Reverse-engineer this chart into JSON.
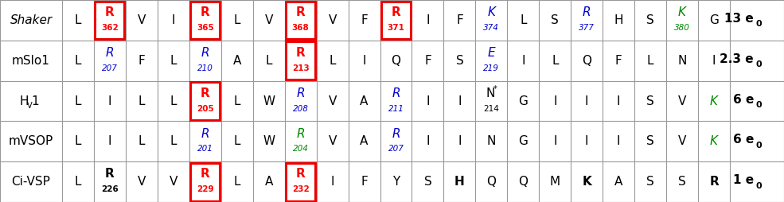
{
  "rows": [
    {
      "name": "Shaker",
      "name_style": "italic",
      "cells": [
        {
          "text": "L",
          "style": "normal",
          "color": "#000000",
          "boxed": false,
          "has_num": false,
          "num": ""
        },
        {
          "text": "R",
          "style": "bold",
          "color": "#ff0000",
          "boxed": true,
          "has_num": true,
          "num": "362"
        },
        {
          "text": "V",
          "style": "normal",
          "color": "#000000",
          "boxed": false,
          "has_num": false,
          "num": ""
        },
        {
          "text": "I",
          "style": "normal",
          "color": "#000000",
          "boxed": false,
          "has_num": false,
          "num": ""
        },
        {
          "text": "R",
          "style": "bold",
          "color": "#ff0000",
          "boxed": true,
          "has_num": true,
          "num": "365"
        },
        {
          "text": "L",
          "style": "normal",
          "color": "#000000",
          "boxed": false,
          "has_num": false,
          "num": ""
        },
        {
          "text": "V",
          "style": "normal",
          "color": "#000000",
          "boxed": false,
          "has_num": false,
          "num": ""
        },
        {
          "text": "R",
          "style": "bold",
          "color": "#ff0000",
          "boxed": true,
          "has_num": true,
          "num": "368"
        },
        {
          "text": "V",
          "style": "normal",
          "color": "#000000",
          "boxed": false,
          "has_num": false,
          "num": ""
        },
        {
          "text": "F",
          "style": "normal",
          "color": "#000000",
          "boxed": false,
          "has_num": false,
          "num": ""
        },
        {
          "text": "R",
          "style": "bold",
          "color": "#ff0000",
          "boxed": true,
          "has_num": true,
          "num": "371"
        },
        {
          "text": "I",
          "style": "normal",
          "color": "#000000",
          "boxed": false,
          "has_num": false,
          "num": ""
        },
        {
          "text": "F",
          "style": "normal",
          "color": "#000000",
          "boxed": false,
          "has_num": false,
          "num": ""
        },
        {
          "text": "K",
          "style": "italic",
          "color": "#0000cc",
          "boxed": false,
          "has_num": true,
          "num": "374"
        },
        {
          "text": "L",
          "style": "normal",
          "color": "#000000",
          "boxed": false,
          "has_num": false,
          "num": ""
        },
        {
          "text": "S",
          "style": "normal",
          "color": "#000000",
          "boxed": false,
          "has_num": false,
          "num": ""
        },
        {
          "text": "R",
          "style": "italic",
          "color": "#0000cc",
          "boxed": false,
          "has_num": true,
          "num": "377"
        },
        {
          "text": "H",
          "style": "normal",
          "color": "#000000",
          "boxed": false,
          "has_num": false,
          "num": ""
        },
        {
          "text": "S",
          "style": "normal",
          "color": "#000000",
          "boxed": false,
          "has_num": false,
          "num": ""
        },
        {
          "text": "K",
          "style": "italic",
          "color": "#008800",
          "boxed": false,
          "has_num": true,
          "num": "380"
        },
        {
          "text": "G",
          "style": "normal",
          "color": "#000000",
          "boxed": false,
          "has_num": false,
          "num": ""
        }
      ],
      "charge_num": "13",
      "charge_e": "e",
      "charge_sub": "0"
    },
    {
      "name": "mSlo1",
      "name_style": "normal",
      "cells": [
        {
          "text": "L",
          "style": "normal",
          "color": "#000000",
          "boxed": false,
          "has_num": false,
          "num": ""
        },
        {
          "text": "R",
          "style": "italic",
          "color": "#0000cc",
          "boxed": false,
          "has_num": true,
          "num": "207"
        },
        {
          "text": "F",
          "style": "normal",
          "color": "#000000",
          "boxed": false,
          "has_num": false,
          "num": ""
        },
        {
          "text": "L",
          "style": "normal",
          "color": "#000000",
          "boxed": false,
          "has_num": false,
          "num": ""
        },
        {
          "text": "R",
          "style": "italic",
          "color": "#0000cc",
          "boxed": false,
          "has_num": true,
          "num": "210"
        },
        {
          "text": "A",
          "style": "normal",
          "color": "#000000",
          "boxed": false,
          "has_num": false,
          "num": ""
        },
        {
          "text": "L",
          "style": "normal",
          "color": "#000000",
          "boxed": false,
          "has_num": false,
          "num": ""
        },
        {
          "text": "R",
          "style": "bold",
          "color": "#ff0000",
          "boxed": true,
          "has_num": true,
          "num": "213"
        },
        {
          "text": "L",
          "style": "normal",
          "color": "#000000",
          "boxed": false,
          "has_num": false,
          "num": ""
        },
        {
          "text": "I",
          "style": "normal",
          "color": "#000000",
          "boxed": false,
          "has_num": false,
          "num": ""
        },
        {
          "text": "Q",
          "style": "normal",
          "color": "#000000",
          "boxed": false,
          "has_num": false,
          "num": ""
        },
        {
          "text": "F",
          "style": "normal",
          "color": "#000000",
          "boxed": false,
          "has_num": false,
          "num": ""
        },
        {
          "text": "S",
          "style": "normal",
          "color": "#000000",
          "boxed": false,
          "has_num": false,
          "num": ""
        },
        {
          "text": "E",
          "style": "italic",
          "color": "#0000cc",
          "boxed": false,
          "has_num": true,
          "num": "219"
        },
        {
          "text": "I",
          "style": "normal",
          "color": "#000000",
          "boxed": false,
          "has_num": false,
          "num": ""
        },
        {
          "text": "L",
          "style": "normal",
          "color": "#000000",
          "boxed": false,
          "has_num": false,
          "num": ""
        },
        {
          "text": "Q",
          "style": "normal",
          "color": "#000000",
          "boxed": false,
          "has_num": false,
          "num": ""
        },
        {
          "text": "F",
          "style": "normal",
          "color": "#000000",
          "boxed": false,
          "has_num": false,
          "num": ""
        },
        {
          "text": "L",
          "style": "normal",
          "color": "#000000",
          "boxed": false,
          "has_num": false,
          "num": ""
        },
        {
          "text": "N",
          "style": "normal",
          "color": "#000000",
          "boxed": false,
          "has_num": false,
          "num": ""
        },
        {
          "text": "I",
          "style": "normal",
          "color": "#000000",
          "boxed": false,
          "has_num": false,
          "num": ""
        }
      ],
      "charge_num": "2.3",
      "charge_e": "e",
      "charge_sub": "0"
    },
    {
      "name": "HV1",
      "name_style": "hv1",
      "cells": [
        {
          "text": "L",
          "style": "normal",
          "color": "#000000",
          "boxed": false,
          "has_num": false,
          "num": ""
        },
        {
          "text": "I",
          "style": "normal",
          "color": "#000000",
          "boxed": false,
          "has_num": false,
          "num": ""
        },
        {
          "text": "L",
          "style": "normal",
          "color": "#000000",
          "boxed": false,
          "has_num": false,
          "num": ""
        },
        {
          "text": "L",
          "style": "normal",
          "color": "#000000",
          "boxed": false,
          "has_num": false,
          "num": ""
        },
        {
          "text": "R",
          "style": "bold",
          "color": "#ff0000",
          "boxed": true,
          "has_num": true,
          "num": "205"
        },
        {
          "text": "L",
          "style": "normal",
          "color": "#000000",
          "boxed": false,
          "has_num": false,
          "num": ""
        },
        {
          "text": "W",
          "style": "normal",
          "color": "#000000",
          "boxed": false,
          "has_num": false,
          "num": ""
        },
        {
          "text": "R",
          "style": "italic",
          "color": "#0000cc",
          "boxed": false,
          "has_num": true,
          "num": "208"
        },
        {
          "text": "V",
          "style": "normal",
          "color": "#000000",
          "boxed": false,
          "has_num": false,
          "num": ""
        },
        {
          "text": "A",
          "style": "normal",
          "color": "#000000",
          "boxed": false,
          "has_num": false,
          "num": ""
        },
        {
          "text": "R",
          "style": "italic",
          "color": "#0000cc",
          "boxed": false,
          "has_num": true,
          "num": "211"
        },
        {
          "text": "I",
          "style": "normal",
          "color": "#000000",
          "boxed": false,
          "has_num": false,
          "num": ""
        },
        {
          "text": "I",
          "style": "normal",
          "color": "#000000",
          "boxed": false,
          "has_num": false,
          "num": ""
        },
        {
          "text": "N*",
          "style": "normal",
          "color": "#000000",
          "boxed": false,
          "has_num": true,
          "num": "214"
        },
        {
          "text": "G",
          "style": "normal",
          "color": "#000000",
          "boxed": false,
          "has_num": false,
          "num": ""
        },
        {
          "text": "I",
          "style": "normal",
          "color": "#000000",
          "boxed": false,
          "has_num": false,
          "num": ""
        },
        {
          "text": "I",
          "style": "normal",
          "color": "#000000",
          "boxed": false,
          "has_num": false,
          "num": ""
        },
        {
          "text": "I",
          "style": "normal",
          "color": "#000000",
          "boxed": false,
          "has_num": false,
          "num": ""
        },
        {
          "text": "S",
          "style": "normal",
          "color": "#000000",
          "boxed": false,
          "has_num": false,
          "num": ""
        },
        {
          "text": "V",
          "style": "normal",
          "color": "#000000",
          "boxed": false,
          "has_num": false,
          "num": ""
        },
        {
          "text": "K",
          "style": "italic",
          "color": "#008800",
          "boxed": false,
          "has_num": false,
          "num": ""
        }
      ],
      "charge_num": "6",
      "charge_e": "e",
      "charge_sub": "0"
    },
    {
      "name": "mVSOP",
      "name_style": "normal",
      "cells": [
        {
          "text": "L",
          "style": "normal",
          "color": "#000000",
          "boxed": false,
          "has_num": false,
          "num": ""
        },
        {
          "text": "I",
          "style": "normal",
          "color": "#000000",
          "boxed": false,
          "has_num": false,
          "num": ""
        },
        {
          "text": "L",
          "style": "normal",
          "color": "#000000",
          "boxed": false,
          "has_num": false,
          "num": ""
        },
        {
          "text": "L",
          "style": "normal",
          "color": "#000000",
          "boxed": false,
          "has_num": false,
          "num": ""
        },
        {
          "text": "R",
          "style": "italic",
          "color": "#0000cc",
          "boxed": false,
          "has_num": true,
          "num": "201"
        },
        {
          "text": "L",
          "style": "normal",
          "color": "#000000",
          "boxed": false,
          "has_num": false,
          "num": ""
        },
        {
          "text": "W",
          "style": "normal",
          "color": "#000000",
          "boxed": false,
          "has_num": false,
          "num": ""
        },
        {
          "text": "R",
          "style": "italic",
          "color": "#008800",
          "boxed": false,
          "has_num": true,
          "num": "204"
        },
        {
          "text": "V",
          "style": "normal",
          "color": "#000000",
          "boxed": false,
          "has_num": false,
          "num": ""
        },
        {
          "text": "A",
          "style": "normal",
          "color": "#000000",
          "boxed": false,
          "has_num": false,
          "num": ""
        },
        {
          "text": "R",
          "style": "italic",
          "color": "#0000cc",
          "boxed": false,
          "has_num": true,
          "num": "207"
        },
        {
          "text": "I",
          "style": "normal",
          "color": "#000000",
          "boxed": false,
          "has_num": false,
          "num": ""
        },
        {
          "text": "I",
          "style": "normal",
          "color": "#000000",
          "boxed": false,
          "has_num": false,
          "num": ""
        },
        {
          "text": "N",
          "style": "normal",
          "color": "#000000",
          "boxed": false,
          "has_num": false,
          "num": ""
        },
        {
          "text": "G",
          "style": "normal",
          "color": "#000000",
          "boxed": false,
          "has_num": false,
          "num": ""
        },
        {
          "text": "I",
          "style": "normal",
          "color": "#000000",
          "boxed": false,
          "has_num": false,
          "num": ""
        },
        {
          "text": "I",
          "style": "normal",
          "color": "#000000",
          "boxed": false,
          "has_num": false,
          "num": ""
        },
        {
          "text": "I",
          "style": "normal",
          "color": "#000000",
          "boxed": false,
          "has_num": false,
          "num": ""
        },
        {
          "text": "S",
          "style": "normal",
          "color": "#000000",
          "boxed": false,
          "has_num": false,
          "num": ""
        },
        {
          "text": "V",
          "style": "normal",
          "color": "#000000",
          "boxed": false,
          "has_num": false,
          "num": ""
        },
        {
          "text": "K",
          "style": "italic",
          "color": "#008800",
          "boxed": false,
          "has_num": false,
          "num": ""
        }
      ],
      "charge_num": "6",
      "charge_e": "e",
      "charge_sub": "0"
    },
    {
      "name": "Ci-VSP",
      "name_style": "normal",
      "cells": [
        {
          "text": "L",
          "style": "normal",
          "color": "#000000",
          "boxed": false,
          "has_num": false,
          "num": ""
        },
        {
          "text": "R",
          "style": "bold",
          "color": "#000000",
          "boxed": false,
          "has_num": true,
          "num": "226"
        },
        {
          "text": "V",
          "style": "normal",
          "color": "#000000",
          "boxed": false,
          "has_num": false,
          "num": ""
        },
        {
          "text": "V",
          "style": "normal",
          "color": "#000000",
          "boxed": false,
          "has_num": false,
          "num": ""
        },
        {
          "text": "R",
          "style": "bold",
          "color": "#ff0000",
          "boxed": true,
          "has_num": true,
          "num": "229"
        },
        {
          "text": "L",
          "style": "normal",
          "color": "#000000",
          "boxed": false,
          "has_num": false,
          "num": ""
        },
        {
          "text": "A",
          "style": "normal",
          "color": "#000000",
          "boxed": false,
          "has_num": false,
          "num": ""
        },
        {
          "text": "R",
          "style": "bold",
          "color": "#ff0000",
          "boxed": true,
          "has_num": true,
          "num": "232"
        },
        {
          "text": "I",
          "style": "normal",
          "color": "#000000",
          "boxed": false,
          "has_num": false,
          "num": ""
        },
        {
          "text": "F",
          "style": "normal",
          "color": "#000000",
          "boxed": false,
          "has_num": false,
          "num": ""
        },
        {
          "text": "Y",
          "style": "normal",
          "color": "#000000",
          "boxed": false,
          "has_num": false,
          "num": ""
        },
        {
          "text": "S",
          "style": "normal",
          "color": "#000000",
          "boxed": false,
          "has_num": false,
          "num": ""
        },
        {
          "text": "H",
          "style": "bold",
          "color": "#000000",
          "boxed": false,
          "has_num": false,
          "num": ""
        },
        {
          "text": "Q",
          "style": "normal",
          "color": "#000000",
          "boxed": false,
          "has_num": false,
          "num": ""
        },
        {
          "text": "Q",
          "style": "normal",
          "color": "#000000",
          "boxed": false,
          "has_num": false,
          "num": ""
        },
        {
          "text": "M",
          "style": "normal",
          "color": "#000000",
          "boxed": false,
          "has_num": false,
          "num": ""
        },
        {
          "text": "K",
          "style": "bold",
          "color": "#000000",
          "boxed": false,
          "has_num": false,
          "num": ""
        },
        {
          "text": "A",
          "style": "normal",
          "color": "#000000",
          "boxed": false,
          "has_num": false,
          "num": ""
        },
        {
          "text": "S",
          "style": "normal",
          "color": "#000000",
          "boxed": false,
          "has_num": false,
          "num": ""
        },
        {
          "text": "S",
          "style": "normal",
          "color": "#000000",
          "boxed": false,
          "has_num": false,
          "num": ""
        },
        {
          "text": "R",
          "style": "bold",
          "color": "#000000",
          "boxed": false,
          "has_num": false,
          "num": ""
        }
      ],
      "charge_num": "1",
      "charge_e": "e",
      "charge_sub": "0"
    }
  ],
  "bg_color": "#ffffff",
  "grid_color": "#999999",
  "box_color": "#ee0000",
  "n_data_cols": 21,
  "letter_fontsize": 11,
  "number_fontsize": 7.5,
  "charge_fontsize": 11,
  "charge_sub_fontsize": 8
}
